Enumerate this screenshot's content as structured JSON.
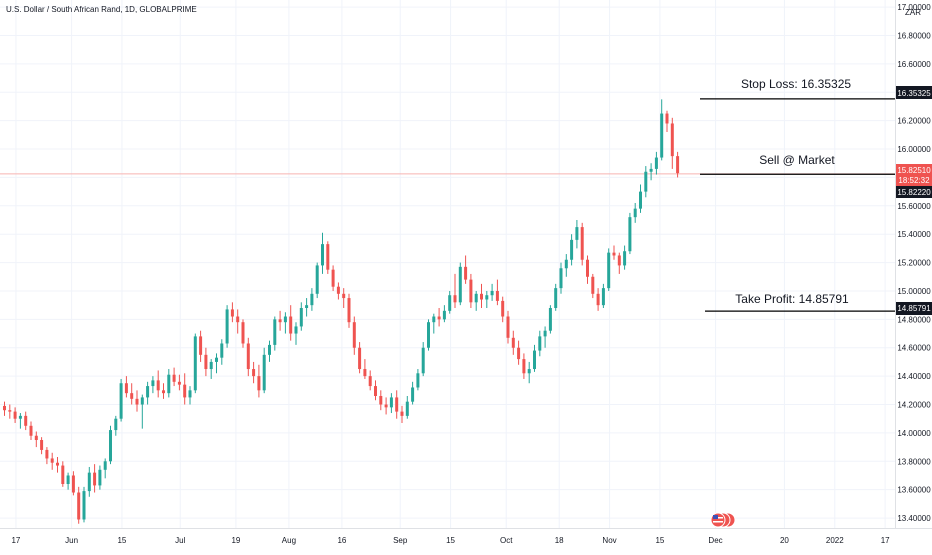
{
  "header": {
    "title": "U.S. Dollar / South African Rand, 1D, GLOBALPRIME",
    "currency": "ZAR"
  },
  "colors": {
    "up": "#26a69a",
    "down": "#ef5350",
    "price_badge": "#ef5350",
    "black_badge": "#131722",
    "grid": "#f0f3fa",
    "axis_text": "#131722",
    "last_price_line": "#f8b3b1"
  },
  "annotations": {
    "stop_loss": "Stop Loss:  16.35325",
    "sell": "Sell @ Market",
    "take_profit": "Take Profit:  14.85791"
  },
  "price_badges": {
    "stop_loss": "16.35325",
    "last_price": "15.82510",
    "countdown": "18:52:32",
    "entry": "15.82220",
    "take_profit": "14.85791"
  },
  "chart_data": {
    "type": "candlestick",
    "title": "U.S. Dollar / South African Rand, 1D, GLOBALPRIME",
    "y_axis_ticks": [
      "17.00000",
      "16.80000",
      "16.60000",
      "16.40000",
      "16.20000",
      "16.00000",
      "15.80000",
      "15.60000",
      "15.40000",
      "15.20000",
      "15.00000",
      "14.80000",
      "14.60000",
      "14.40000",
      "14.20000",
      "14.00000",
      "13.80000",
      "13.60000",
      "13.40000"
    ],
    "x_axis_ticks": [
      "17",
      "Jun",
      "15",
      "Jul",
      "19",
      "Aug",
      "16",
      "Sep",
      "15",
      "Oct",
      "18",
      "Nov",
      "15",
      "Dec",
      "20",
      "2022",
      "17"
    ],
    "ylim": [
      13.33,
      17.05
    ],
    "levels": {
      "stop_loss": 16.35325,
      "entry": 15.8222,
      "last": 15.8251,
      "take_profit": 14.85791
    },
    "candles": [
      [
        14.19,
        14.22,
        14.12,
        14.16
      ],
      [
        14.16,
        14.2,
        14.1,
        14.15
      ],
      [
        14.15,
        14.18,
        14.07,
        14.1
      ],
      [
        14.1,
        14.14,
        14.03,
        14.12
      ],
      [
        14.12,
        14.15,
        14.02,
        14.05
      ],
      [
        14.05,
        14.08,
        13.95,
        13.98
      ],
      [
        13.98,
        14.01,
        13.9,
        13.95
      ],
      [
        13.95,
        13.97,
        13.85,
        13.88
      ],
      [
        13.88,
        13.9,
        13.78,
        13.82
      ],
      [
        13.82,
        13.86,
        13.74,
        13.79
      ],
      [
        13.79,
        13.83,
        13.72,
        13.77
      ],
      [
        13.77,
        13.8,
        13.62,
        13.64
      ],
      [
        13.64,
        13.72,
        13.6,
        13.7
      ],
      [
        13.7,
        13.73,
        13.56,
        13.58
      ],
      [
        13.58,
        13.62,
        13.36,
        13.39
      ],
      [
        13.39,
        13.62,
        13.37,
        13.59
      ],
      [
        13.59,
        13.76,
        13.55,
        13.72
      ],
      [
        13.72,
        13.78,
        13.58,
        13.63
      ],
      [
        13.63,
        13.77,
        13.6,
        13.74
      ],
      [
        13.74,
        13.82,
        13.68,
        13.8
      ],
      [
        13.8,
        14.05,
        13.78,
        14.02
      ],
      [
        14.02,
        14.12,
        13.98,
        14.1
      ],
      [
        14.1,
        14.38,
        14.08,
        14.35
      ],
      [
        14.35,
        14.4,
        14.25,
        14.28
      ],
      [
        14.28,
        14.35,
        14.2,
        14.24
      ],
      [
        14.24,
        14.3,
        14.15,
        14.2
      ],
      [
        14.2,
        14.27,
        14.03,
        14.25
      ],
      [
        14.25,
        14.36,
        14.2,
        14.33
      ],
      [
        14.33,
        14.4,
        14.28,
        14.37
      ],
      [
        14.37,
        14.44,
        14.25,
        14.3
      ],
      [
        14.3,
        14.35,
        14.24,
        14.28
      ],
      [
        14.28,
        14.45,
        14.25,
        14.41
      ],
      [
        14.41,
        14.46,
        14.33,
        14.36
      ],
      [
        14.36,
        14.41,
        14.3,
        14.34
      ],
      [
        14.34,
        14.42,
        14.2,
        14.25
      ],
      [
        14.25,
        14.33,
        14.2,
        14.3
      ],
      [
        14.3,
        14.7,
        14.28,
        14.68
      ],
      [
        14.68,
        14.72,
        14.5,
        14.55
      ],
      [
        14.55,
        14.6,
        14.4,
        14.45
      ],
      [
        14.45,
        14.52,
        14.38,
        14.5
      ],
      [
        14.5,
        14.56,
        14.42,
        14.53
      ],
      [
        14.53,
        14.66,
        14.48,
        14.63
      ],
      [
        14.63,
        14.9,
        14.6,
        14.87
      ],
      [
        14.87,
        14.92,
        14.78,
        14.82
      ],
      [
        14.82,
        14.87,
        14.7,
        14.78
      ],
      [
        14.78,
        14.8,
        14.6,
        14.63
      ],
      [
        14.63,
        14.67,
        14.4,
        14.45
      ],
      [
        14.45,
        14.5,
        14.35,
        14.4
      ],
      [
        14.4,
        14.48,
        14.25,
        14.3
      ],
      [
        14.3,
        14.6,
        14.28,
        14.55
      ],
      [
        14.55,
        14.65,
        14.5,
        14.62
      ],
      [
        14.62,
        14.82,
        14.58,
        14.8
      ],
      [
        14.8,
        14.86,
        14.72,
        14.78
      ],
      [
        14.78,
        14.85,
        14.7,
        14.82
      ],
      [
        14.82,
        14.9,
        14.65,
        14.7
      ],
      [
        14.7,
        14.78,
        14.62,
        14.75
      ],
      [
        14.75,
        14.92,
        14.72,
        14.88
      ],
      [
        14.88,
        14.95,
        14.82,
        14.9
      ],
      [
        14.9,
        15.02,
        14.86,
        14.98
      ],
      [
        14.98,
        15.2,
        14.95,
        15.18
      ],
      [
        15.18,
        15.41,
        15.12,
        15.33
      ],
      [
        15.33,
        15.35,
        15.12,
        15.15
      ],
      [
        15.15,
        15.18,
        15.0,
        15.03
      ],
      [
        15.03,
        15.06,
        14.94,
        14.98
      ],
      [
        14.98,
        15.02,
        14.88,
        14.95
      ],
      [
        14.95,
        14.98,
        14.74,
        14.78
      ],
      [
        14.78,
        14.82,
        14.55,
        14.6
      ],
      [
        14.6,
        14.64,
        14.42,
        14.45
      ],
      [
        14.45,
        14.52,
        14.38,
        14.4
      ],
      [
        14.4,
        14.44,
        14.3,
        14.33
      ],
      [
        14.33,
        14.37,
        14.23,
        14.26
      ],
      [
        14.26,
        14.3,
        14.16,
        14.2
      ],
      [
        14.2,
        14.25,
        14.13,
        14.18
      ],
      [
        14.18,
        14.28,
        14.14,
        14.25
      ],
      [
        14.25,
        14.3,
        14.1,
        14.15
      ],
      [
        14.15,
        14.19,
        14.07,
        14.12
      ],
      [
        14.12,
        14.26,
        14.1,
        14.22
      ],
      [
        14.22,
        14.36,
        14.2,
        14.32
      ],
      [
        14.32,
        14.45,
        14.3,
        14.42
      ],
      [
        14.42,
        14.64,
        14.4,
        14.6
      ],
      [
        14.6,
        14.8,
        14.58,
        14.78
      ],
      [
        14.78,
        14.84,
        14.7,
        14.82
      ],
      [
        14.82,
        14.88,
        14.75,
        14.8
      ],
      [
        14.8,
        14.9,
        14.78,
        14.86
      ],
      [
        14.86,
        15.0,
        14.84,
        14.97
      ],
      [
        14.97,
        15.12,
        14.88,
        14.92
      ],
      [
        14.92,
        15.2,
        14.9,
        15.17
      ],
      [
        15.17,
        15.25,
        15.05,
        15.08
      ],
      [
        15.08,
        15.12,
        14.88,
        14.92
      ],
      [
        14.92,
        15.0,
        14.86,
        14.98
      ],
      [
        14.98,
        15.05,
        14.88,
        14.94
      ],
      [
        14.94,
        15.0,
        14.88,
        14.97
      ],
      [
        14.97,
        15.05,
        14.93,
        15.0
      ],
      [
        15.0,
        15.08,
        14.9,
        14.93
      ],
      [
        14.93,
        14.96,
        14.78,
        14.82
      ],
      [
        14.82,
        14.86,
        14.63,
        14.67
      ],
      [
        14.67,
        14.72,
        14.55,
        14.6
      ],
      [
        14.6,
        14.65,
        14.48,
        14.52
      ],
      [
        14.52,
        14.56,
        14.38,
        14.42
      ],
      [
        14.42,
        14.5,
        14.35,
        14.45
      ],
      [
        14.45,
        14.62,
        14.43,
        14.58
      ],
      [
        14.58,
        14.72,
        14.54,
        14.68
      ],
      [
        14.68,
        14.75,
        14.6,
        14.72
      ],
      [
        14.72,
        14.9,
        14.7,
        14.88
      ],
      [
        14.88,
        15.05,
        14.86,
        15.02
      ],
      [
        15.02,
        15.2,
        14.98,
        15.16
      ],
      [
        15.16,
        15.26,
        15.1,
        15.22
      ],
      [
        15.22,
        15.4,
        15.18,
        15.36
      ],
      [
        15.36,
        15.5,
        15.3,
        15.45
      ],
      [
        15.45,
        15.48,
        15.18,
        15.22
      ],
      [
        15.22,
        15.25,
        15.05,
        15.1
      ],
      [
        15.1,
        15.12,
        14.95,
        14.98
      ],
      [
        14.98,
        15.02,
        14.86,
        14.9
      ],
      [
        14.9,
        15.05,
        14.88,
        15.02
      ],
      [
        15.02,
        15.3,
        15.0,
        15.27
      ],
      [
        15.27,
        15.32,
        15.22,
        15.25
      ],
      [
        15.25,
        15.27,
        15.12,
        15.18
      ],
      [
        15.18,
        15.32,
        15.15,
        15.28
      ],
      [
        15.28,
        15.55,
        15.26,
        15.52
      ],
      [
        15.52,
        15.62,
        15.48,
        15.58
      ],
      [
        15.58,
        15.75,
        15.55,
        15.7
      ],
      [
        15.7,
        15.88,
        15.66,
        15.84
      ],
      [
        15.84,
        15.9,
        15.78,
        15.86
      ],
      [
        15.86,
        15.98,
        15.82,
        15.94
      ],
      [
        15.94,
        16.35,
        15.92,
        16.25
      ],
      [
        16.25,
        16.27,
        16.12,
        16.18
      ],
      [
        16.18,
        16.22,
        15.86,
        15.95
      ],
      [
        15.95,
        15.98,
        15.8,
        15.83
      ]
    ]
  }
}
